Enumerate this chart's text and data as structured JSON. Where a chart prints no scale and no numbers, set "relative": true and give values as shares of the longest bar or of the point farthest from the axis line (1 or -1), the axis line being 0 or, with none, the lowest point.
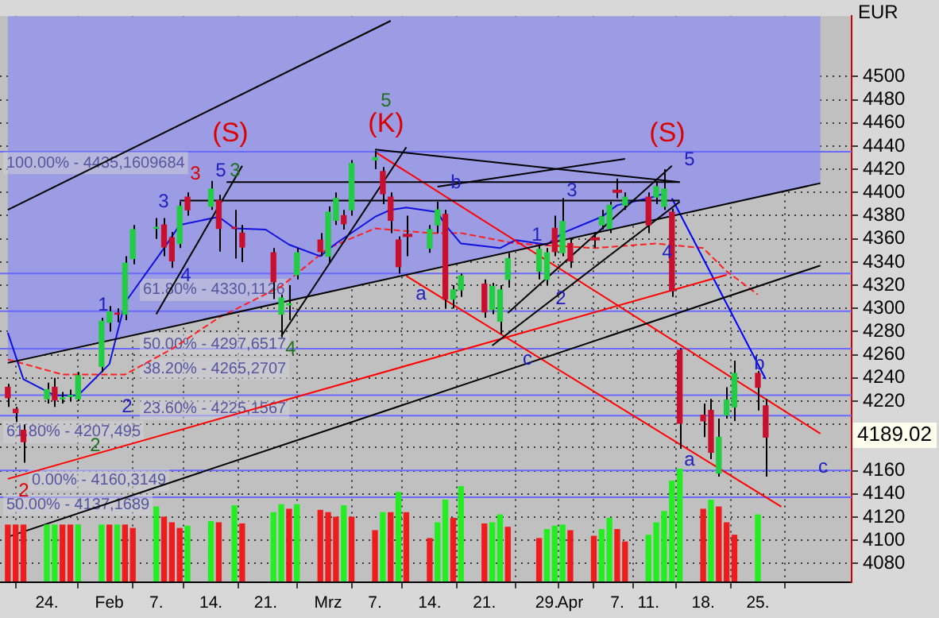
{
  "chart_data": [
    {
      "type": "candlestick",
      "ylabel": "EUR",
      "x": [
        "--01-19",
        "--01-20",
        "--01-21",
        "--01-24",
        "--01-25",
        "--01-26",
        "--01-27",
        "--01-28",
        "--01-31",
        "--02-01",
        "--02-02",
        "--02-03",
        "--02-04",
        "--02-07",
        "--02-08",
        "--02-09",
        "--02-10",
        "--02-11",
        "--02-14",
        "--02-15",
        "--02-17",
        "--02-18",
        "--02-22",
        "--02-23",
        "--02-24",
        "--02-25",
        "--02-28",
        "--03-01",
        "--03-02",
        "--03-03",
        "--03-04",
        "--03-07",
        "--03-08",
        "--03-09",
        "--03-10",
        "--03-11",
        "--03-14",
        "--03-15",
        "--03-16",
        "--03-17",
        "--03-18",
        "--03-21",
        "--03-22",
        "--03-23",
        "--03-24",
        "--03-28",
        "--03-29",
        "--03-30",
        "--03-31",
        "--04-01",
        "--04-04",
        "--04-05",
        "--04-06",
        "--04-07",
        "--04-08",
        "--04-11",
        "--04-12",
        "--04-13",
        "--04-14",
        "--04-15",
        "--04-18",
        "--04-19",
        "--04-20",
        "--04-21",
        "--04-22",
        "--04-25",
        "--04-26"
      ],
      "ohlc": [
        [
          4232,
          4235,
          4215,
          4223
        ],
        [
          4213,
          4215,
          4202,
          4210
        ],
        [
          4195,
          4200,
          4167,
          4185
        ],
        [
          4222,
          4236,
          4218,
          4230
        ],
        [
          4232,
          4240,
          4215,
          4221
        ],
        [
          4222,
          4228,
          4218,
          4223
        ],
        [
          4224,
          4230,
          4220,
          4225
        ],
        [
          4222,
          4245,
          4220,
          4242
        ],
        [
          4250,
          4292,
          4245,
          4289
        ],
        [
          4288,
          4302,
          4280,
          4297
        ],
        [
          4296,
          4300,
          4288,
          4295
        ],
        [
          4295,
          4345,
          4290,
          4339
        ],
        [
          4343,
          4372,
          4338,
          4368
        ],
        [
          4369,
          4378,
          4360,
          4370
        ],
        [
          4372,
          4378,
          4345,
          4353
        ],
        [
          4361,
          4366,
          4335,
          4341
        ],
        [
          4356,
          4392,
          4352,
          4388
        ],
        [
          4396,
          4400,
          4380,
          4385
        ],
        [
          4388,
          4410,
          4385,
          4403
        ],
        [
          4393,
          4398,
          4349,
          4369
        ],
        [
          4370,
          4385,
          4343,
          4369
        ],
        [
          4365,
          4372,
          4340,
          4353
        ],
        [
          4348,
          4352,
          4308,
          4323
        ],
        [
          4295,
          4312,
          4275,
          4309
        ],
        [
          4303,
          4320,
          4290,
          4304
        ],
        [
          4329,
          4352,
          4325,
          4348
        ],
        [
          4359,
          4365,
          4345,
          4349
        ],
        [
          4345,
          4388,
          4340,
          4383
        ],
        [
          4376,
          4400,
          4372,
          4395
        ],
        [
          4380,
          4385,
          4368,
          4373
        ],
        [
          4385,
          4428,
          4380,
          4425
        ],
        [
          4430,
          4436,
          4420,
          4428
        ],
        [
          4418,
          4422,
          4390,
          4399
        ],
        [
          4396,
          4400,
          4365,
          4376
        ],
        [
          4359,
          4362,
          4330,
          4336
        ],
        [
          4363,
          4380,
          4345,
          4363
        ],
        [
          4352,
          4372,
          4348,
          4368
        ],
        [
          4372,
          4392,
          4365,
          4385
        ],
        [
          4381,
          4385,
          4300,
          4308
        ],
        [
          4308,
          4320,
          4300,
          4316
        ],
        [
          4316,
          4330,
          4310,
          4328
        ],
        [
          4321,
          4325,
          4292,
          4297
        ],
        [
          4299,
          4322,
          4295,
          4319
        ],
        [
          4289,
          4320,
          4278,
          4316
        ],
        [
          4325,
          4348,
          4318,
          4343
        ],
        [
          4332,
          4355,
          4325,
          4351
        ],
        [
          4325,
          4352,
          4320,
          4348
        ],
        [
          4369,
          4380,
          4345,
          4349
        ],
        [
          4348,
          4395,
          4345,
          4375
        ],
        [
          4356,
          4360,
          4335,
          4341
        ],
        [
          4360,
          4366,
          4352,
          4360
        ],
        [
          4372,
          4385,
          4368,
          4379
        ],
        [
          4369,
          4392,
          4365,
          4389
        ],
        [
          4401,
          4412,
          4395,
          4401
        ],
        [
          4389,
          4400,
          4385,
          4396
        ],
        [
          4396,
          4400,
          4365,
          4372
        ],
        [
          4396,
          4410,
          4390,
          4405
        ],
        [
          4388,
          4420,
          4385,
          4403
        ],
        [
          4383,
          4386,
          4310,
          4315
        ],
        [
          4264,
          4266,
          4179,
          4201
        ],
        [
          4208,
          4218,
          4189,
          4203
        ],
        [
          4212,
          4222,
          4170,
          4176
        ],
        [
          4158,
          4205,
          4155,
          4189
        ],
        [
          4208,
          4232,
          4205,
          4221
        ],
        [
          4215,
          4255,
          4203,
          4244
        ],
        [
          4244,
          4246,
          4212,
          4232
        ],
        [
          4216,
          4222,
          4155,
          4189.02
        ]
      ],
      "colors": [
        "#c8102e",
        "#c8102e",
        "#c8102e",
        "#22cc44",
        "#c8102e",
        "#22cc44",
        "#22cc44",
        "#22cc44",
        "#22cc44",
        "#22cc44",
        "#c8102e",
        "#22cc44",
        "#22cc44",
        "#22cc44",
        "#c8102e",
        "#c8102e",
        "#22cc44",
        "#c8102e",
        "#22cc44",
        "#c8102e",
        "#c8102e",
        "#c8102e",
        "#c8102e",
        "#22cc44",
        "#22cc44",
        "#22cc44",
        "#c8102e",
        "#22cc44",
        "#22cc44",
        "#c8102e",
        "#22cc44",
        "#22cc44",
        "#c8102e",
        "#c8102e",
        "#c8102e",
        "#c8102e",
        "#22cc44",
        "#22cc44",
        "#c8102e",
        "#22cc44",
        "#22cc44",
        "#c8102e",
        "#22cc44",
        "#22cc44",
        "#22cc44",
        "#22cc44",
        "#22cc44",
        "#c8102e",
        "#22cc44",
        "#c8102e",
        "#c8102e",
        "#22cc44",
        "#22cc44",
        "#c8102e",
        "#22cc44",
        "#c8102e",
        "#22cc44",
        "#22cc44",
        "#c8102e",
        "#c8102e",
        "#c8102e",
        "#c8102e",
        "#22cc44",
        "#22cc44",
        "#22cc44",
        "#c8102e",
        "#c8102e"
      ],
      "xlim": [
        "--01-18",
        "--05-07"
      ],
      "xticks": [
        {
          "value": "--01-24",
          "label": "24."
        },
        {
          "value": "--02-01",
          "label": "Feb"
        },
        {
          "value": "--02-07",
          "label": "7."
        },
        {
          "value": "--02-14",
          "label": "14."
        },
        {
          "value": "--02-21",
          "label": "21."
        },
        {
          "value": "--03-01",
          "label": "Mrz"
        },
        {
          "value": "--03-07",
          "label": "7."
        },
        {
          "value": "--03-14",
          "label": "14."
        },
        {
          "value": "--03-21",
          "label": "21."
        },
        {
          "value": "--03-29",
          "label": "29."
        },
        {
          "value": "--04-01",
          "label": "Apr"
        },
        {
          "value": "--04-07",
          "label": "7."
        },
        {
          "value": "--04-11",
          "label": "11."
        },
        {
          "value": "--04-18",
          "label": "18."
        },
        {
          "value": "--04-25",
          "label": "25."
        }
      ],
      "ylim": [
        4064,
        4552
      ],
      "yticks": [
        4080,
        4100,
        4120,
        4140,
        4160,
        {
          "value": 4180,
          "label": null
        },
        {
          "value": 4200,
          "label": null
        },
        4220,
        4240,
        4260,
        4280,
        4300,
        4320,
        4340,
        4360,
        4380,
        4400,
        4420,
        4440,
        4460,
        4480,
        4500
      ],
      "grid": true,
      "series": [
        {
          "type": "line",
          "color": "#000000",
          "x": [
            "--01-19",
            "--05-03"
          ],
          "values": [
            4253,
            4408
          ],
          "lower": [
            4253,
            4408
          ],
          "upper": [
            4552,
            4552
          ]
        },
        {
          "type": "line",
          "color": "#000000",
          "x": [
            "--01-19",
            "--05-03"
          ],
          "values": [
            4103,
            4337
          ]
        },
        {
          "type": "line",
          "color": "#000000",
          "x": [
            "--01-19",
            "--03-09"
          ],
          "values": [
            4385,
            4548
          ]
        },
        {
          "type": "line",
          "color": "#000000",
          "x": [
            "--02-23",
            "--03-11"
          ],
          "values": [
            4276,
            4439
          ]
        },
        {
          "type": "line",
          "color": "#000000",
          "x": [
            "--02-07",
            "--02-18"
          ],
          "values": [
            4295,
            4423
          ]
        },
        {
          "type": "line",
          "color": "#000000",
          "x": [
            "--02-16",
            "--04-15"
          ],
          "values": [
            4409,
            4409
          ]
        },
        {
          "type": "line",
          "color": "#000000",
          "x": [
            "--02-10",
            "--04-15"
          ],
          "values": [
            4393,
            4393
          ]
        },
        {
          "type": "line",
          "color": "#000000",
          "x": [
            "--03-07",
            "--04-15"
          ],
          "values": [
            4437,
            4409
          ]
        },
        {
          "type": "line",
          "color": "#000000",
          "x": [
            "--03-22",
            "--04-15"
          ],
          "values": [
            4268,
            4392
          ]
        },
        {
          "type": "line",
          "color": "#000000",
          "x": [
            "--03-24",
            "--04-14"
          ],
          "values": [
            4296,
            4423
          ]
        },
        {
          "type": "line",
          "color": "#000000",
          "x": [
            "--03-15",
            "--04-08"
          ],
          "values": [
            4405,
            4429
          ]
        },
        {
          "type": "line",
          "color": "#ff0000",
          "x": [
            "--01-19",
            "--04-21"
          ],
          "values": [
            4153,
            4329
          ]
        },
        {
          "type": "line",
          "color": "#ff0000",
          "x": [
            "--03-07",
            "--05-03"
          ],
          "values": [
            4435,
            4192
          ]
        },
        {
          "type": "line",
          "color": "#ff0000",
          "x": [
            "--03-11",
            "--04-28"
          ],
          "values": [
            4328,
            4129
          ]
        },
        {
          "type": "line",
          "color": "#0000ff",
          "x": [
            "--04-14",
            "--04-26"
          ],
          "values": [
            4395,
            4239
          ]
        },
        {
          "type": "line",
          "color": "#1010e0",
          "x": [
            "--01-19",
            "--01-21",
            "--01-25",
            "--01-28",
            "--02-01",
            "--02-03",
            "--02-08",
            "--02-10",
            "--02-15",
            "--02-17",
            "--02-21",
            "--02-24",
            "--02-28",
            "--03-02",
            "--03-07",
            "--03-09",
            "--03-11",
            "--03-15",
            "--03-16",
            "--03-18",
            "--03-23",
            "--03-25",
            "--03-29",
            "--03-31",
            "--04-05",
            "--04-07",
            "--04-11",
            "--04-13"
          ],
          "values": [
            4279,
            4239,
            4225,
            4225,
            4252,
            4305,
            4352,
            4372,
            4379,
            4369,
            4368,
            4355,
            4345,
            4356,
            4379,
            4385,
            4387,
            4383,
            4372,
            4356,
            4352,
            4359,
            4355,
            4365,
            4379,
            4389,
            4395,
            4399
          ]
        },
        {
          "type": "line",
          "color": "#ff2020",
          "line_style": "dashed",
          "x": [
            "--01-19",
            "--01-26",
            "--02-03",
            "--02-09",
            "--02-15",
            "--02-23",
            "--03-01",
            "--03-07",
            "--03-14",
            "--03-18",
            "--03-25",
            "--04-04",
            "--04-12",
            "--04-18",
            "--04-21",
            "--04-25"
          ],
          "values": [
            4256,
            4243,
            4243,
            4265,
            4292,
            4319,
            4352,
            4369,
            4365,
            4365,
            4356,
            4352,
            4356,
            4352,
            4332,
            4312
          ]
        }
      ],
      "ref_lines": [
        {
          "axis": "y",
          "value": 4435.1609684,
          "color": "#6a6aff"
        },
        {
          "axis": "y",
          "value": 4330.1126,
          "color": "#6a6aff"
        },
        {
          "axis": "y",
          "value": 4297.6517,
          "color": "#6a6aff"
        },
        {
          "axis": "y",
          "value": 4265.2707,
          "color": "#6a6aff"
        },
        {
          "axis": "y",
          "value": 4225.1567,
          "color": "#6a6aff"
        },
        {
          "axis": "y",
          "value": 4207.495,
          "color": "#6a6aff"
        },
        {
          "axis": "y",
          "value": 4160.3149,
          "color": "#6a6aff"
        },
        {
          "axis": "y",
          "value": 4137.1689,
          "color": "#6a6aff"
        }
      ],
      "annotations": [
        "(S)",
        "(K)",
        "(S)",
        "3",
        "5",
        "3",
        "3",
        "4",
        "1",
        "2",
        "2",
        "2",
        "4",
        "5",
        "b",
        "a",
        "1",
        "2",
        "3",
        "c",
        "4",
        "5",
        "a",
        "b",
        "c",
        "4189.02",
        "100.00% - 4435,1609684",
        "61.80% - 4330,1126",
        "50.00% - 4297,6517",
        "38.20% - 4265,2707",
        "23.60% - 4225,1567",
        "61.80% - 4207,495",
        "0.00% - 4160,3149",
        "50.00% - 4137,1689"
      ]
    },
    {
      "type": "bar",
      "relative": true,
      "tick_labels": false,
      "xlim": [
        "--01-18",
        "--05-07"
      ],
      "x": [
        "--01-19",
        "--01-20",
        "--01-21",
        "--01-24",
        "--01-25",
        "--01-26",
        "--01-27",
        "--01-28",
        "--01-31",
        "--02-01",
        "--02-02",
        "--02-03",
        "--02-04",
        "--02-07",
        "--02-08",
        "--02-09",
        "--02-10",
        "--02-11",
        "--02-14",
        "--02-15",
        "--02-17",
        "--02-18",
        "--02-22",
        "--02-23",
        "--02-24",
        "--02-25",
        "--02-28",
        "--03-01",
        "--03-02",
        "--03-03",
        "--03-04",
        "--03-07",
        "--03-08",
        "--03-09",
        "--03-10",
        "--03-11",
        "--03-14",
        "--03-15",
        "--03-16",
        "--03-17",
        "--03-18",
        "--03-21",
        "--03-22",
        "--03-23",
        "--03-24",
        "--03-28",
        "--03-29",
        "--03-30",
        "--03-31",
        "--04-01",
        "--04-04",
        "--04-05",
        "--04-06",
        "--04-07",
        "--04-08",
        "--04-11",
        "--04-12",
        "--04-13",
        "--04-14",
        "--04-15",
        "--04-18",
        "--04-19",
        "--04-20",
        "--04-21",
        "--04-22",
        "--04-25"
      ],
      "values": [
        0.5,
        0.5,
        0.5,
        0.5,
        0.5,
        0.5,
        0.5,
        0.5,
        0.5,
        0.5,
        0.5,
        0.5,
        0.47,
        0.66,
        0.57,
        0.52,
        0.47,
        0.49,
        0.53,
        0.52,
        0.67,
        0.51,
        0.61,
        0.68,
        0.64,
        0.68,
        0.63,
        0.61,
        0.57,
        0.67,
        0.57,
        0.45,
        0.61,
        0.61,
        0.79,
        0.61,
        0.38,
        0.52,
        0.72,
        0.56,
        0.84,
        0.51,
        0.52,
        0.59,
        0.48,
        0.38,
        0.46,
        0.49,
        0.5,
        0.45,
        0.4,
        0.46,
        0.56,
        0.46,
        0.35,
        0.41,
        0.52,
        0.62,
        0.89,
        1,
        0.64,
        0.72,
        0.66,
        0.52,
        0.41,
        0.59
      ],
      "colors": [
        "#ee1c1c",
        "#ee1c1c",
        "#ee1c1c",
        "#22ee22",
        "#22ee22",
        "#ee1c1c",
        "#ee1c1c",
        "#22ee22",
        "#22ee22",
        "#ee1c1c",
        "#22ee22",
        "#ee1c1c",
        "#ee1c1c",
        "#22ee22",
        "#ee1c1c",
        "#ee1c1c",
        "#ee1c1c",
        "#22ee22",
        "#22ee22",
        "#ee1c1c",
        "#22ee22",
        "#ee1c1c",
        "#22ee22",
        "#22ee22",
        "#ee1c1c",
        "#22ee22",
        "#ee1c1c",
        "#ee1c1c",
        "#ee1c1c",
        "#22ee22",
        "#ee1c1c",
        "#ee1c1c",
        "#22ee22",
        "#ee1c1c",
        "#22ee22",
        "#ee1c1c",
        "#ee1c1c",
        "#22ee22",
        "#22ee22",
        "#ee1c1c",
        "#22ee22",
        "#ee1c1c",
        "#22ee22",
        "#22ee22",
        "#ee1c1c",
        "#ee1c1c",
        "#22ee22",
        "#22ee22",
        "#22ee22",
        "#ee1c1c",
        "#ee1c1c",
        "#22ee22",
        "#22ee22",
        "#ee1c1c",
        "#ee1c1c",
        "#22ee22",
        "#22ee22",
        "#22ee22",
        "#22ee22",
        "#22ee22",
        "#ee1c1c",
        "#22ee22",
        "#ee1c1c",
        "#ee1c1c",
        "#ee1c1c",
        "#22ee22"
      ]
    }
  ]
}
